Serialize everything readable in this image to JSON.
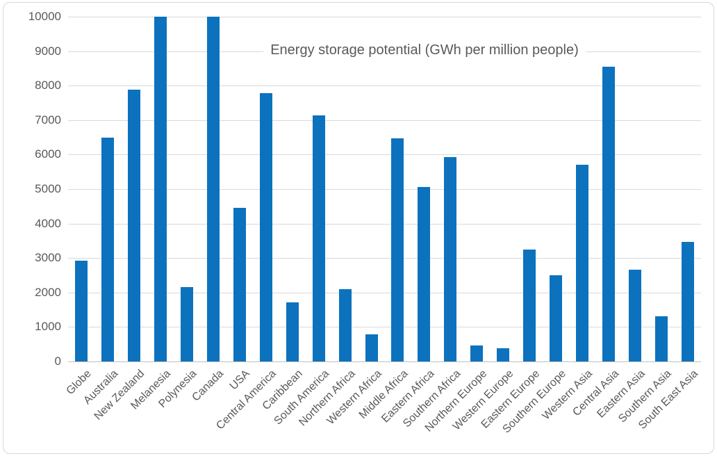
{
  "chart_data": {
    "type": "bar",
    "title": "Energy storage potential (GWh per million people)",
    "xlabel": "",
    "ylabel": "",
    "categories": [
      "Globe",
      "Australia",
      "New Zealand",
      "Melanesia",
      "Polynesia",
      "Canada",
      "USA",
      "Central America",
      "Caribbean",
      "South America",
      "Northern Africa",
      "Western Africa",
      "Middle Africa",
      "Eastern Africa",
      "Southern Africa",
      "Northern Europe",
      "Western Europe",
      "Eastern Europe",
      "Southern Europe",
      "Western Asia",
      "Central Asia",
      "Eastern Asia",
      "Southern Asia",
      "South East Asia"
    ],
    "values": [
      2920,
      6500,
      7890,
      10000,
      2150,
      10000,
      4460,
      7790,
      1710,
      7130,
      2090,
      780,
      6480,
      5070,
      5920,
      460,
      390,
      3250,
      2510,
      5710,
      8550,
      2670,
      1310,
      3470
    ],
    "ylim": [
      0,
      10000
    ],
    "yticks": [
      0,
      1000,
      2000,
      3000,
      4000,
      5000,
      6000,
      7000,
      8000,
      9000,
      10000
    ],
    "grid": true,
    "legend": false,
    "title_position": "center-on-9000-gridline",
    "colors": {
      "bar": "#0c72be",
      "gridline": "#d9d9d9",
      "axis_line": "#bfbfbf",
      "text": "#595959",
      "frame_border": "#d8d8d8",
      "background": "#ffffff"
    }
  }
}
